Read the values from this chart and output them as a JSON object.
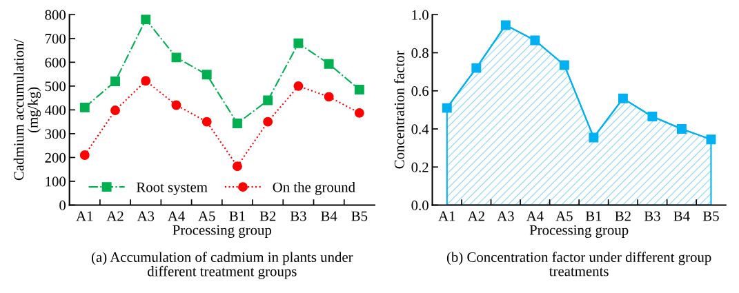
{
  "chart_data": [
    {
      "type": "line",
      "title": "(a) Accumulation of cadmium in plants under\ndifferent treatment groups",
      "xlabel": "Processing group",
      "ylabel": "Cadmium accumulation/\n(mg/kg)",
      "categories": [
        "A1",
        "A2",
        "A3",
        "A4",
        "A5",
        "B1",
        "B2",
        "B3",
        "B4",
        "B5"
      ],
      "series": [
        {
          "name": "Root system",
          "color": "#00b050",
          "marker": "square",
          "line_style": "dashdot",
          "values": [
            410,
            520,
            780,
            620,
            548,
            343,
            440,
            680,
            593,
            485
          ]
        },
        {
          "name": "On the ground",
          "color": "#ff0000",
          "marker": "circle",
          "line_style": "dotted",
          "values": [
            210,
            398,
            522,
            420,
            350,
            163,
            350,
            500,
            455,
            387
          ]
        }
      ],
      "ylim": [
        0,
        800
      ],
      "yticks": [
        0,
        100,
        200,
        300,
        400,
        500,
        600,
        700,
        800
      ],
      "grid": false,
      "legend": "bottom"
    },
    {
      "type": "area",
      "title": "(b) Concentration factor under different group\ntreatments",
      "xlabel": "Processing group",
      "ylabel": "Concentration factor",
      "categories": [
        "A1",
        "A2",
        "A3",
        "A4",
        "A5",
        "B1",
        "B2",
        "B3",
        "B4",
        "B5"
      ],
      "series": [
        {
          "color": "#00b0f0",
          "values": [
            0.51,
            0.72,
            0.945,
            0.865,
            0.735,
            0.355,
            0.56,
            0.465,
            0.4,
            0.345
          ]
        }
      ],
      "marker": "square",
      "line_style": "solid",
      "ylim": [
        0.0,
        1.0
      ],
      "yticks": [
        {
          "value": 0,
          "label": "0.0"
        },
        0.2,
        0.4,
        0.6,
        0.8,
        {
          "value": 1,
          "label": "1.0"
        }
      ],
      "grid": false,
      "legend": false
    }
  ]
}
